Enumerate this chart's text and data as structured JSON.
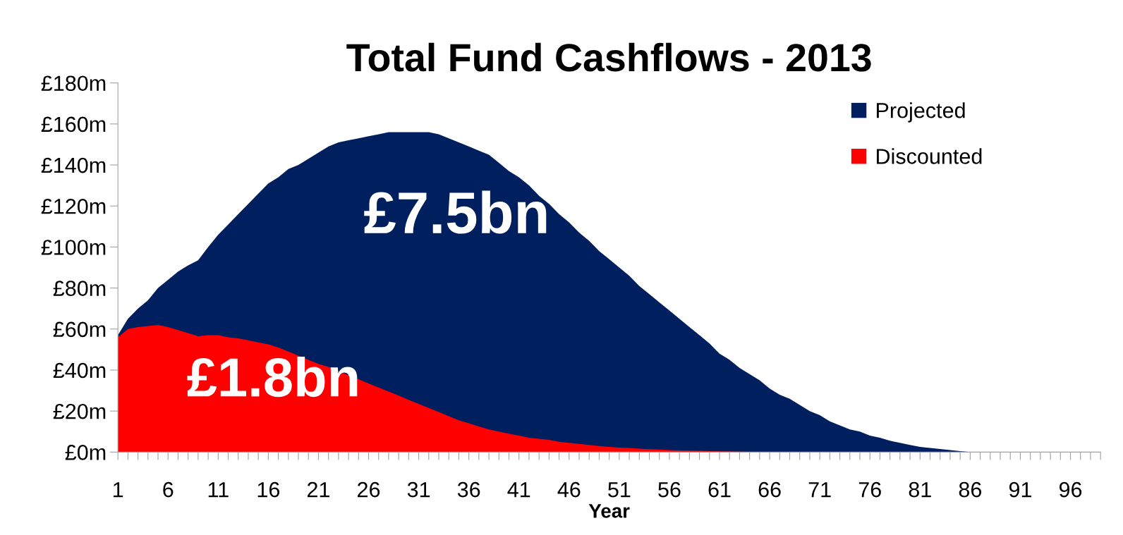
{
  "chart_data": {
    "type": "area",
    "title": "Total Fund Cashflows - 2013",
    "xlabel": "Year",
    "categories": [
      "1",
      null,
      null,
      null,
      null,
      "6",
      null,
      null,
      null,
      null,
      "11",
      null,
      null,
      null,
      null,
      "16",
      null,
      null,
      null,
      null,
      "21",
      null,
      null,
      null,
      null,
      "26",
      null,
      null,
      null,
      null,
      "31",
      null,
      null,
      null,
      null,
      "36",
      null,
      null,
      null,
      null,
      "41",
      null,
      null,
      null,
      null,
      "46",
      null,
      null,
      null,
      null,
      "51",
      null,
      null,
      null,
      null,
      "56",
      null,
      null,
      null,
      null,
      "61",
      null,
      null,
      null,
      null,
      "66",
      null,
      null,
      null,
      null,
      "71",
      null,
      null,
      null,
      null,
      "76",
      null,
      null,
      null,
      null,
      "81",
      null,
      null,
      null,
      null,
      "86",
      null,
      null,
      null,
      null,
      "91",
      null,
      null,
      null,
      null,
      "96",
      null,
      null,
      null
    ],
    "series": [
      {
        "name": "Projected",
        "color": "#001f5f",
        "values": [
          57,
          65,
          70,
          74,
          80,
          84,
          88,
          91,
          93.5,
          100,
          106,
          111,
          116,
          121,
          126,
          131,
          134,
          138,
          140,
          143,
          146,
          149,
          151,
          152,
          153,
          154,
          155,
          156,
          156,
          156,
          156,
          156,
          155,
          153,
          151,
          149,
          147,
          145,
          141,
          137,
          134,
          130,
          125,
          121,
          116,
          112,
          107,
          103,
          98,
          94,
          90,
          86,
          81,
          77,
          73,
          69,
          65,
          61,
          57,
          53,
          48,
          45,
          41,
          38,
          35,
          31,
          28,
          26,
          23,
          20,
          18,
          15,
          13,
          11,
          10,
          8,
          7,
          5.5,
          4.5,
          3.5,
          2.5,
          2,
          1.5,
          1,
          0.5,
          0,
          0,
          0,
          0,
          0,
          0,
          0,
          0,
          0,
          0,
          0,
          0,
          0,
          0
        ]
      },
      {
        "name": "Discounted",
        "color": "#ff0000",
        "values": [
          56,
          60,
          61,
          61.5,
          62,
          61,
          59.5,
          58,
          56.5,
          57,
          57,
          56,
          55.5,
          54.5,
          53.5,
          52.5,
          51,
          49,
          47,
          45,
          43,
          41.5,
          39.5,
          37.5,
          35.5,
          33.5,
          31.5,
          29.5,
          27.5,
          25.5,
          23.5,
          21.5,
          19.5,
          17.5,
          15.5,
          14,
          12.5,
          11,
          10,
          9,
          8,
          7,
          6.5,
          6,
          5,
          4.5,
          4,
          3.5,
          3,
          2.5,
          2.2,
          2,
          1.7,
          1.4,
          1.2,
          1,
          0.8,
          0.7,
          0.6,
          0.5,
          0.4,
          0.3,
          0.2,
          0.1,
          0.1,
          0,
          0,
          0,
          0,
          0,
          0,
          0,
          0,
          0,
          0,
          0,
          0,
          0,
          0,
          0,
          0,
          0,
          0,
          0,
          0,
          0,
          0,
          0,
          0,
          0,
          0,
          0,
          0,
          0,
          0,
          0,
          0,
          0,
          0
        ]
      }
    ],
    "ylim": [
      0,
      180
    ],
    "yticks": [
      {
        "value": 0,
        "label": "£0m"
      },
      {
        "value": 20,
        "label": "£20m"
      },
      {
        "value": 40,
        "label": "£40m"
      },
      {
        "value": 60,
        "label": "£60m"
      },
      {
        "value": 80,
        "label": "£80m"
      },
      {
        "value": 100,
        "label": "£100m"
      },
      {
        "value": 120,
        "label": "£120m"
      },
      {
        "value": 140,
        "label": "£140m"
      },
      {
        "value": 160,
        "label": "£160m"
      },
      {
        "value": 180,
        "label": "£180m"
      }
    ],
    "annotations": [
      "£7.5bn",
      "£1.8bn"
    ],
    "legend": "top right",
    "grid": false
  }
}
